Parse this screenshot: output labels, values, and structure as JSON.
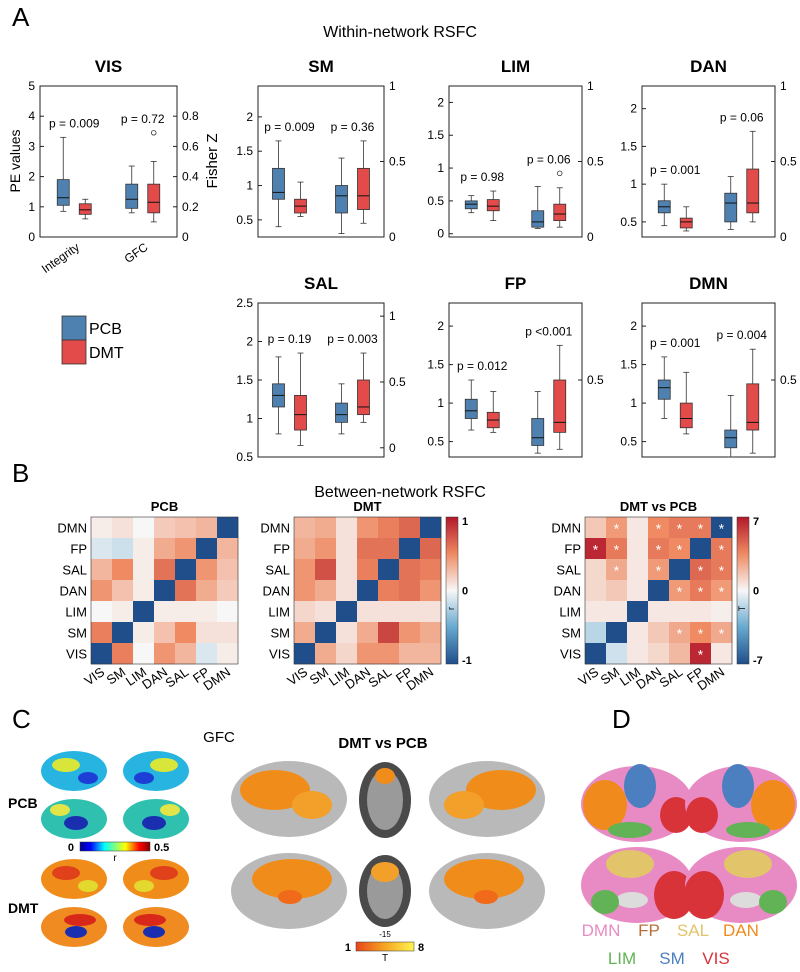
{
  "colors": {
    "pcb": "#4f81b0",
    "dmt": "#e34a4a",
    "brain_gray": "#b9b9b9"
  },
  "panel_letters": {
    "a": "A",
    "b": "B",
    "c": "C",
    "d": "D"
  },
  "panel_a": {
    "title": "Within-network RSFC",
    "left_axis_label": "PE values",
    "right_axis_label": "Fisher Z",
    "legend": {
      "pcb": "PCB",
      "dmt": "DMT"
    }
  },
  "chart_data": [
    {
      "type": "box",
      "title": "VIS",
      "categories": [
        "Integrity",
        "GFC"
      ],
      "left_ylim": [
        0,
        5
      ],
      "left_ticks": [
        "0",
        "1",
        "2",
        "3",
        "4",
        "5"
      ],
      "right_ylim": [
        0,
        1
      ],
      "right_ticks": [
        "0",
        "0.2",
        "0.4",
        "0.6",
        "0.8"
      ],
      "pvalues": [
        "p = 0.009",
        "p = 0.72"
      ],
      "series": [
        {
          "name": "PCB",
          "boxes": [
            {
              "min": 0.85,
              "q1": 1.05,
              "median": 1.3,
              "q3": 1.9,
              "max": 3.3
            },
            {
              "min": 0.8,
              "q1": 0.95,
              "median": 1.25,
              "q3": 1.75,
              "max": 2.35
            }
          ]
        },
        {
          "name": "DMT",
          "boxes": [
            {
              "min": 0.6,
              "q1": 0.75,
              "median": 0.9,
              "q3": 1.1,
              "max": 1.25
            },
            {
              "min": 0.5,
              "q1": 0.8,
              "median": 1.15,
              "q3": 1.75,
              "max": 2.5,
              "outliers": [
                3.45
              ]
            }
          ]
        }
      ]
    },
    {
      "type": "box",
      "title": "SM",
      "left_ylim": [
        0.25,
        2.45
      ],
      "left_ticks": [
        "0.5",
        "1",
        "1.5",
        "2"
      ],
      "right_ylim": [
        0,
        1
      ],
      "right_ticks": [
        "0",
        "0.5",
        "1"
      ],
      "pvalues": [
        "p = 0.009",
        "p = 0.36"
      ],
      "series": [
        {
          "name": "PCB",
          "boxes": [
            {
              "min": 0.4,
              "q1": 0.8,
              "median": 0.9,
              "q3": 1.25,
              "max": 1.65
            },
            {
              "min": 0.3,
              "q1": 0.6,
              "median": 0.85,
              "q3": 1.0,
              "max": 1.4
            }
          ]
        },
        {
          "name": "DMT",
          "boxes": [
            {
              "min": 0.55,
              "q1": 0.6,
              "median": 0.7,
              "q3": 0.8,
              "max": 1.05
            },
            {
              "min": 0.45,
              "q1": 0.65,
              "median": 0.85,
              "q3": 1.25,
              "max": 1.65
            }
          ]
        }
      ]
    },
    {
      "type": "box",
      "title": "LIM",
      "left_ylim": [
        -0.05,
        2.25
      ],
      "left_ticks": [
        "0",
        "0.5",
        "1",
        "1.5",
        "2"
      ],
      "right_ylim": [
        0,
        1
      ],
      "right_ticks": [
        "0",
        "0.5",
        "1"
      ],
      "pvalues": [
        "p = 0.98",
        "p = 0.06"
      ],
      "series": [
        {
          "name": "PCB",
          "boxes": [
            {
              "min": 0.32,
              "q1": 0.38,
              "median": 0.45,
              "q3": 0.5,
              "max": 0.58
            },
            {
              "min": 0.08,
              "q1": 0.1,
              "median": 0.18,
              "q3": 0.35,
              "max": 0.72
            }
          ]
        },
        {
          "name": "DMT",
          "boxes": [
            {
              "min": 0.2,
              "q1": 0.35,
              "median": 0.42,
              "q3": 0.52,
              "max": 0.65
            },
            {
              "min": 0.1,
              "q1": 0.2,
              "median": 0.3,
              "q3": 0.45,
              "max": 0.7,
              "outliers": [
                0.92
              ]
            }
          ]
        }
      ]
    },
    {
      "type": "box",
      "title": "DAN",
      "left_ylim": [
        0.3,
        2.3
      ],
      "left_ticks": [
        "0.5",
        "1",
        "1.5",
        "2"
      ],
      "right_ylim": [
        0,
        1
      ],
      "right_ticks": [
        "0",
        "0.5",
        "1"
      ],
      "pvalues": [
        "p = 0.001",
        "p = 0.06"
      ],
      "series": [
        {
          "name": "PCB",
          "boxes": [
            {
              "min": 0.45,
              "q1": 0.62,
              "median": 0.7,
              "q3": 0.78,
              "max": 1.0
            },
            {
              "min": 0.4,
              "q1": 0.5,
              "median": 0.75,
              "q3": 0.88,
              "max": 1.1
            }
          ]
        },
        {
          "name": "DMT",
          "boxes": [
            {
              "min": 0.38,
              "q1": 0.42,
              "median": 0.5,
              "q3": 0.55,
              "max": 0.7
            },
            {
              "min": 0.5,
              "q1": 0.62,
              "median": 0.75,
              "q3": 1.2,
              "max": 1.7
            }
          ]
        }
      ]
    },
    {
      "type": "box",
      "title": "SAL",
      "left_ylim": [
        0.5,
        2.5
      ],
      "left_ticks": [
        "0.5",
        "1",
        "1.5",
        "2",
        "2.5"
      ],
      "right_ylim": [
        -0.07,
        1.1
      ],
      "right_ticks": [
        "0",
        "0.5",
        "1"
      ],
      "pvalues": [
        "p = 0.19",
        "p = 0.003"
      ],
      "series": [
        {
          "name": "PCB",
          "boxes": [
            {
              "min": 0.8,
              "q1": 1.15,
              "median": 1.3,
              "q3": 1.45,
              "max": 1.8
            },
            {
              "min": 0.8,
              "q1": 0.95,
              "median": 1.05,
              "q3": 1.2,
              "max": 1.45
            }
          ]
        },
        {
          "name": "DMT",
          "boxes": [
            {
              "min": 0.65,
              "q1": 0.85,
              "median": 1.05,
              "q3": 1.3,
              "max": 1.85
            },
            {
              "min": 0.95,
              "q1": 1.05,
              "median": 1.15,
              "q3": 1.5,
              "max": 1.85
            }
          ]
        }
      ]
    },
    {
      "type": "box",
      "title": "FP",
      "left_ylim": [
        0.3,
        2.3
      ],
      "left_ticks": [
        "0.5",
        "1",
        "1.5",
        "2"
      ],
      "right_ylim": [
        0,
        1
      ],
      "right_ticks": [
        "0.5"
      ],
      "pvalues": [
        "p = 0.012",
        "p <0.001"
      ],
      "series": [
        {
          "name": "PCB",
          "boxes": [
            {
              "min": 0.65,
              "q1": 0.8,
              "median": 0.9,
              "q3": 1.05,
              "max": 1.3
            },
            {
              "min": 0.35,
              "q1": 0.45,
              "median": 0.55,
              "q3": 0.8,
              "max": 1.15
            }
          ]
        },
        {
          "name": "DMT",
          "boxes": [
            {
              "min": 0.62,
              "q1": 0.68,
              "median": 0.78,
              "q3": 0.88,
              "max": 1.15
            },
            {
              "min": 0.4,
              "q1": 0.62,
              "median": 0.75,
              "q3": 1.3,
              "max": 1.75
            }
          ]
        }
      ]
    },
    {
      "type": "box",
      "title": "DMN",
      "left_ylim": [
        0.3,
        2.3
      ],
      "left_ticks": [
        "0.5",
        "1",
        "1.5",
        "2"
      ],
      "right_ylim": [
        0,
        1
      ],
      "right_ticks": [
        "0.5"
      ],
      "pvalues": [
        "p = 0.001",
        "p = 0.004"
      ],
      "series": [
        {
          "name": "PCB",
          "boxes": [
            {
              "min": 0.8,
              "q1": 1.05,
              "median": 1.2,
              "q3": 1.3,
              "max": 1.6
            },
            {
              "min": 0.3,
              "q1": 0.42,
              "median": 0.55,
              "q3": 0.65,
              "max": 1.1
            }
          ]
        },
        {
          "name": "DMT",
          "boxes": [
            {
              "min": 0.6,
              "q1": 0.68,
              "median": 0.8,
              "q3": 1.0,
              "max": 1.4
            },
            {
              "min": 0.35,
              "q1": 0.65,
              "median": 0.75,
              "q3": 1.25,
              "max": 1.7
            }
          ]
        }
      ]
    },
    {
      "type": "heatmap",
      "title": "PCB",
      "rows": [
        "DMN",
        "FP",
        "SAL",
        "DAN",
        "LIM",
        "SM",
        "VIS"
      ],
      "cols": [
        "VIS",
        "SM",
        "LIM",
        "DAN",
        "SAL",
        "FP",
        "DMN"
      ],
      "values": [
        [
          0.05,
          0.1,
          0.0,
          0.2,
          0.25,
          0.3,
          -1
        ],
        [
          -0.1,
          -0.15,
          0.05,
          0.35,
          0.45,
          -1,
          0.3
        ],
        [
          0.3,
          0.5,
          0.05,
          0.6,
          -1,
          0.45,
          0.25
        ],
        [
          0.45,
          0.25,
          0.05,
          -1,
          0.6,
          0.35,
          0.2
        ],
        [
          0.0,
          0.05,
          -1,
          0.05,
          0.05,
          0.05,
          0.0
        ],
        [
          0.55,
          -1,
          0.05,
          0.25,
          0.5,
          0.1,
          0.1
        ],
        [
          -1,
          0.55,
          0.0,
          0.45,
          0.3,
          -0.1,
          0.05
        ]
      ]
    },
    {
      "type": "heatmap",
      "title": "DMT",
      "colorbar_ticks": [
        "1",
        "0",
        "-1"
      ],
      "colorbar_label": "r",
      "rows": [
        "DMN",
        "FP",
        "SAL",
        "DAN",
        "LIM",
        "SM",
        "VIS"
      ],
      "cols": [
        "VIS",
        "SM",
        "LIM",
        "DAN",
        "SAL",
        "FP",
        "DMN"
      ],
      "values": [
        [
          0.3,
          0.35,
          0.1,
          0.45,
          0.55,
          0.65,
          -1
        ],
        [
          0.35,
          0.45,
          0.1,
          0.6,
          0.6,
          -1,
          0.65
        ],
        [
          0.45,
          0.75,
          0.1,
          0.55,
          -1,
          0.6,
          0.55
        ],
        [
          0.45,
          0.35,
          0.1,
          -1,
          0.55,
          0.6,
          0.45
        ],
        [
          0.15,
          0.1,
          -1,
          0.1,
          0.1,
          0.1,
          0.1
        ],
        [
          0.35,
          -1,
          0.1,
          0.35,
          0.8,
          0.45,
          0.35
        ],
        [
          -1,
          0.35,
          0.15,
          0.45,
          0.45,
          0.3,
          0.3
        ]
      ]
    },
    {
      "type": "heatmap",
      "title": "DMT vs PCB",
      "colorbar_ticks": [
        "7",
        "0",
        "-7"
      ],
      "colorbar_label": "T",
      "rows": [
        "DMN",
        "FP",
        "SAL",
        "DAN",
        "LIM",
        "SM",
        "VIS"
      ],
      "cols": [
        "VIS",
        "SM",
        "LIM",
        "DAN",
        "SAL",
        "FP",
        "DMN"
      ],
      "values": [
        [
          1.5,
          3.0,
          0.5,
          3.5,
          4.0,
          4.0,
          -7
        ],
        [
          6.5,
          4.0,
          0.5,
          4.0,
          3.5,
          -7,
          4.0
        ],
        [
          1.0,
          2.5,
          0.5,
          3.0,
          -7,
          4.5,
          4.0
        ],
        [
          1.0,
          1.5,
          0.5,
          -7,
          3.0,
          4.0,
          3.0
        ],
        [
          0.5,
          0.5,
          -7,
          0.5,
          0.5,
          0.5,
          0.3
        ],
        [
          -1.5,
          -7,
          0.5,
          1.5,
          2.5,
          3.5,
          2.5
        ],
        [
          -7,
          -1.0,
          0.5,
          1.0,
          2.0,
          6.5,
          0.5
        ]
      ],
      "significant": [
        [
          0,
          1
        ],
        [
          0,
          3
        ],
        [
          0,
          4
        ],
        [
          0,
          5
        ],
        [
          0,
          6
        ],
        [
          1,
          0
        ],
        [
          1,
          1
        ],
        [
          1,
          3
        ],
        [
          1,
          4
        ],
        [
          1,
          6
        ],
        [
          2,
          1
        ],
        [
          2,
          3
        ],
        [
          2,
          5
        ],
        [
          2,
          6
        ],
        [
          3,
          4
        ],
        [
          3,
          5
        ],
        [
          3,
          6
        ],
        [
          5,
          4
        ],
        [
          5,
          5
        ],
        [
          5,
          6
        ],
        [
          6,
          5
        ]
      ],
      "significant_mark": "*"
    }
  ],
  "panel_b": {
    "title": "Between-network RSFC"
  },
  "panel_c": {
    "title": "GFC",
    "subtitle": "DMT vs PCB",
    "row_labels": [
      "PCB",
      "DMT"
    ],
    "scale_r": {
      "min": "0",
      "max": "0.5",
      "label": "r"
    },
    "scale_t": {
      "min": "1",
      "max": "8",
      "label": "T"
    },
    "slice_label": "-15"
  },
  "panel_d": {
    "networks": [
      {
        "label": "DMN",
        "color": "#e88bc4"
      },
      {
        "label": "FP",
        "color": "#b8703a"
      },
      {
        "label": "SAL",
        "color": "#e2c46a"
      },
      {
        "label": "DAN",
        "color": "#f08a1c"
      },
      {
        "label": "LIM",
        "color": "#62b356"
      },
      {
        "label": "SM",
        "color": "#4c7fc0"
      },
      {
        "label": "VIS",
        "color": "#d9333a"
      }
    ]
  }
}
